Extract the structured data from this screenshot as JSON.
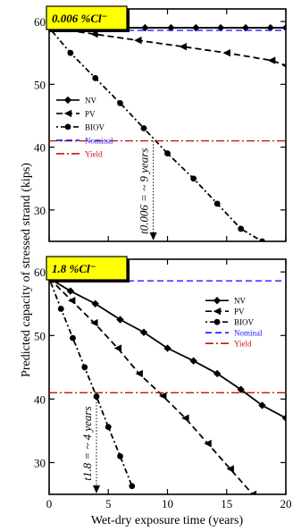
{
  "figure": {
    "ylabel": "Predicted capacity of stressed strand (kips)",
    "xlabel": "Wet-dry exposure time (years)"
  },
  "colors": {
    "label_box_fill": "#ffff00",
    "nominal": "#1a1aff",
    "yield": "#cc1111",
    "series": "#000000"
  },
  "chart_data": [
    {
      "type": "line",
      "box_label": "0.006 %Cl⁻",
      "annotation": "t0.006 = ~ 9 years",
      "annotation_x": 8.8,
      "xlim": [
        0,
        20
      ],
      "ylim": [
        25,
        62
      ],
      "xticks": [
        0,
        5,
        10,
        15,
        20
      ],
      "yticks": [
        30,
        40,
        50,
        60
      ],
      "legend_position": "left-middle",
      "series": [
        {
          "name": "NV",
          "style": "solid",
          "marker": "diamond",
          "x": [
            0,
            1.8,
            3.9,
            6,
            8.1,
            10.3,
            12.4,
            14.5,
            16.6,
            18.7,
            20
          ],
          "y": [
            59,
            59,
            59,
            59,
            59,
            59,
            59,
            59,
            59,
            59,
            59
          ]
        },
        {
          "name": "PV",
          "style": "dashed",
          "marker": "triangle-left",
          "x": [
            0,
            3.8,
            7.5,
            11.3,
            15,
            18.8,
            20
          ],
          "y": [
            59,
            58,
            57,
            56,
            55,
            53.8,
            53
          ]
        },
        {
          "name": "BIOV",
          "style": "dotdash",
          "marker": "circle",
          "x": [
            0,
            1.8,
            3.9,
            6,
            8,
            10,
            12.2,
            14.2,
            16.2,
            18
          ],
          "y": [
            59,
            55,
            51,
            47,
            43,
            39,
            35,
            31,
            27,
            25
          ]
        },
        {
          "name": "Nominal",
          "style": "dashed",
          "marker": "none",
          "x": [
            0,
            20
          ],
          "y": [
            58.6,
            58.6
          ]
        },
        {
          "name": "Yield",
          "style": "dashdot",
          "marker": "none",
          "x": [
            0,
            20
          ],
          "y": [
            41,
            41
          ]
        }
      ]
    },
    {
      "type": "line",
      "box_label": "1.8 %Cl⁻",
      "annotation": "t1.8 = ~ 4 years",
      "annotation_x": 4,
      "xlim": [
        0,
        20
      ],
      "ylim": [
        25,
        62
      ],
      "xticks": [
        0,
        5,
        10,
        15,
        20
      ],
      "yticks": [
        30,
        40,
        50,
        60
      ],
      "legend_position": "right-upper",
      "series": [
        {
          "name": "NV",
          "style": "solid",
          "marker": "diamond",
          "x": [
            0,
            1.8,
            3.9,
            6,
            8,
            10,
            12.2,
            14.2,
            16.2,
            18,
            20
          ],
          "y": [
            59,
            57,
            55,
            52.5,
            50.5,
            48,
            46,
            44,
            41.5,
            39,
            37
          ]
        },
        {
          "name": "PV",
          "style": "dashed",
          "marker": "triangle-left",
          "x": [
            0,
            1.9,
            3.8,
            5.8,
            7.6,
            9.6,
            11.5,
            13.4,
            15.3,
            17.2,
            19
          ],
          "y": [
            59,
            55.5,
            52,
            48,
            44,
            40.5,
            37,
            33,
            29,
            25,
            22
          ]
        },
        {
          "name": "BIOV",
          "style": "dotdash",
          "marker": "circle",
          "x": [
            0,
            1,
            2,
            3,
            4,
            5,
            6,
            7
          ],
          "y": [
            59,
            54.2,
            49.6,
            45,
            40.4,
            35.6,
            31,
            26.3
          ]
        },
        {
          "name": "Nominal",
          "style": "dashed",
          "marker": "none",
          "x": [
            0,
            20
          ],
          "y": [
            58.6,
            58.6
          ]
        },
        {
          "name": "Yield",
          "style": "dashdot",
          "marker": "none",
          "x": [
            0,
            20
          ],
          "y": [
            41,
            41
          ]
        }
      ]
    }
  ]
}
